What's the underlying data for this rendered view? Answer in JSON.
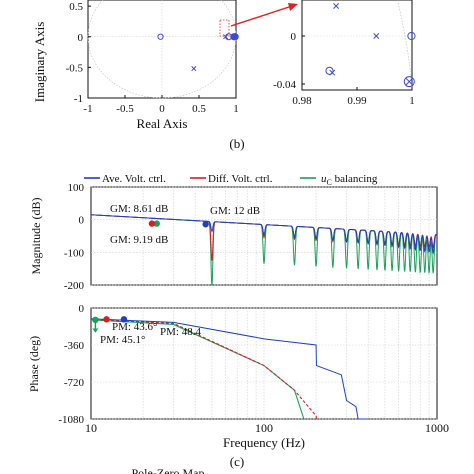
{
  "chart_data": [
    {
      "type": "scatter",
      "xlabel": "Real Axis",
      "ylabel": "Imaginary Axis",
      "xlim": [
        -1,
        1
      ],
      "ylim": [
        -1,
        0.6
      ],
      "xticks": [
        "-1",
        "-0.5",
        "0",
        "0.5",
        "1"
      ],
      "yticks": [
        "0.5",
        "0",
        "-0.5",
        "-1"
      ],
      "poles": [
        [
          0.43,
          -0.52
        ],
        [
          0.86,
          0.0
        ],
        [
          0.97,
          0.0
        ]
      ],
      "zeros": [
        [
          -0.02,
          0.0
        ],
        [
          0.9,
          0.0
        ],
        [
          0.98,
          0.0
        ],
        [
          0.99,
          0.0
        ]
      ]
    },
    {
      "type": "scatter",
      "xlim": [
        0.98,
        1.0
      ],
      "ylim": [
        -0.045,
        0.03
      ],
      "xticks": [
        "0.98",
        "0.99",
        "1"
      ],
      "yticks": [
        "0",
        "-0.04"
      ],
      "poles": [
        [
          0.9855,
          -0.0305
        ],
        [
          0.9935,
          0.0
        ],
        [
          0.9995,
          -0.038
        ],
        [
          0.9862,
          0.025
        ]
      ],
      "zeros": [
        [
          0.985,
          -0.029
        ],
        [
          0.9999,
          0.0
        ],
        [
          0.9995,
          -0.038
        ]
      ]
    },
    {
      "type": "line",
      "ylabel": "Magnitude (dB)",
      "xscale": "log",
      "xlim": [
        10,
        1000
      ],
      "ylim": [
        -200,
        100
      ],
      "yticks": [
        "100",
        "0",
        "-100",
        "-200"
      ],
      "series": [
        {
          "name": "Ave. Volt. ctrl.",
          "color": "#1f3fbf",
          "notch_frequencies": [
            50,
            100,
            150,
            200,
            250,
            300,
            350,
            400,
            450,
            500,
            550,
            600,
            650,
            700,
            750,
            800,
            850,
            900,
            950
          ]
        },
        {
          "name": "Diff. Volt. ctrl.",
          "color": "#d42020",
          "notch_frequencies": [
            50,
            100,
            150,
            200,
            250,
            300,
            350,
            400,
            450,
            500,
            550,
            600,
            650,
            700,
            750,
            800,
            850,
            900,
            950
          ]
        },
        {
          "name": "balancing",
          "color": "#1aa05a",
          "notch_frequencies": [
            50,
            100,
            150,
            200,
            250,
            300,
            350,
            400,
            450,
            500,
            550,
            600,
            650,
            700,
            750,
            800,
            850,
            900,
            950
          ]
        }
      ],
      "annotations": [
        {
          "text": "GM: 8.61 dB",
          "color": "#d42020",
          "at": [
            24,
            -12
          ]
        },
        {
          "text": "GM: 12 dB",
          "color": "#1f3fbf",
          "at": [
            46,
            -14
          ]
        },
        {
          "text": "GM: 9.19 dB",
          "color": "#1aa05a",
          "at": [
            24,
            -12
          ]
        }
      ]
    },
    {
      "type": "line",
      "ylabel": "Phase (deg)",
      "xlabel": "Frequency (Hz)",
      "xscale": "log",
      "xlim": [
        10,
        1000
      ],
      "ylim": [
        -1080,
        0
      ],
      "xticks": [
        "10",
        "100",
        "1000"
      ],
      "yticks": [
        "0",
        "-360",
        "-720",
        "-1080"
      ],
      "series": [
        {
          "name": "Ave. Volt. ctrl.",
          "color": "#1f3fbf",
          "points": [
            [
              10,
              -105
            ],
            [
              30,
              -140
            ],
            [
              100,
              -300
            ],
            [
              200,
              -360
            ],
            [
              201,
              -560
            ],
            [
              280,
              -650
            ],
            [
              300,
              -900
            ],
            [
              340,
              -960
            ],
            [
              350,
              -1080
            ],
            [
              400,
              -1080
            ]
          ]
        },
        {
          "name": "Diff. Volt. ctrl.",
          "color": "#d42020",
          "points": [
            [
              10,
              -110
            ],
            [
              30,
              -150
            ],
            [
              100,
              -560
            ],
            [
              150,
              -800
            ],
            [
              200,
              -1050
            ],
            [
              201,
              -1080
            ]
          ]
        },
        {
          "name": "balancing",
          "color": "#1aa05a",
          "points": [
            [
              10,
              -115
            ],
            [
              30,
              -160
            ],
            [
              100,
              -560
            ],
            [
              150,
              -800
            ],
            [
              170,
              -1080
            ]
          ]
        }
      ],
      "annotations": [
        {
          "text": "PM: 48.4",
          "color": "#1f3fbf",
          "at": [
            15.5,
            -115
          ]
        },
        {
          "text": "PM: 43.6°",
          "color": "#d42020",
          "at": [
            12.5,
            -110
          ]
        },
        {
          "text": "PM: 45.1°",
          "color": "#1aa05a",
          "at": [
            10.5,
            -115
          ]
        }
      ]
    }
  ],
  "labels": {
    "panel_b": "(b)",
    "panel_c": "(c)",
    "bottom_title": "Pole-Zero Map",
    "legend_uc_u": "u",
    "legend_uc_sub": "C",
    "legend_uc_rest": " balancing"
  },
  "colors": {
    "blue": "#1f3fbf",
    "red": "#d42020",
    "green": "#1aa05a",
    "marker": "#3b4bd6",
    "arrow": "#e02020"
  }
}
